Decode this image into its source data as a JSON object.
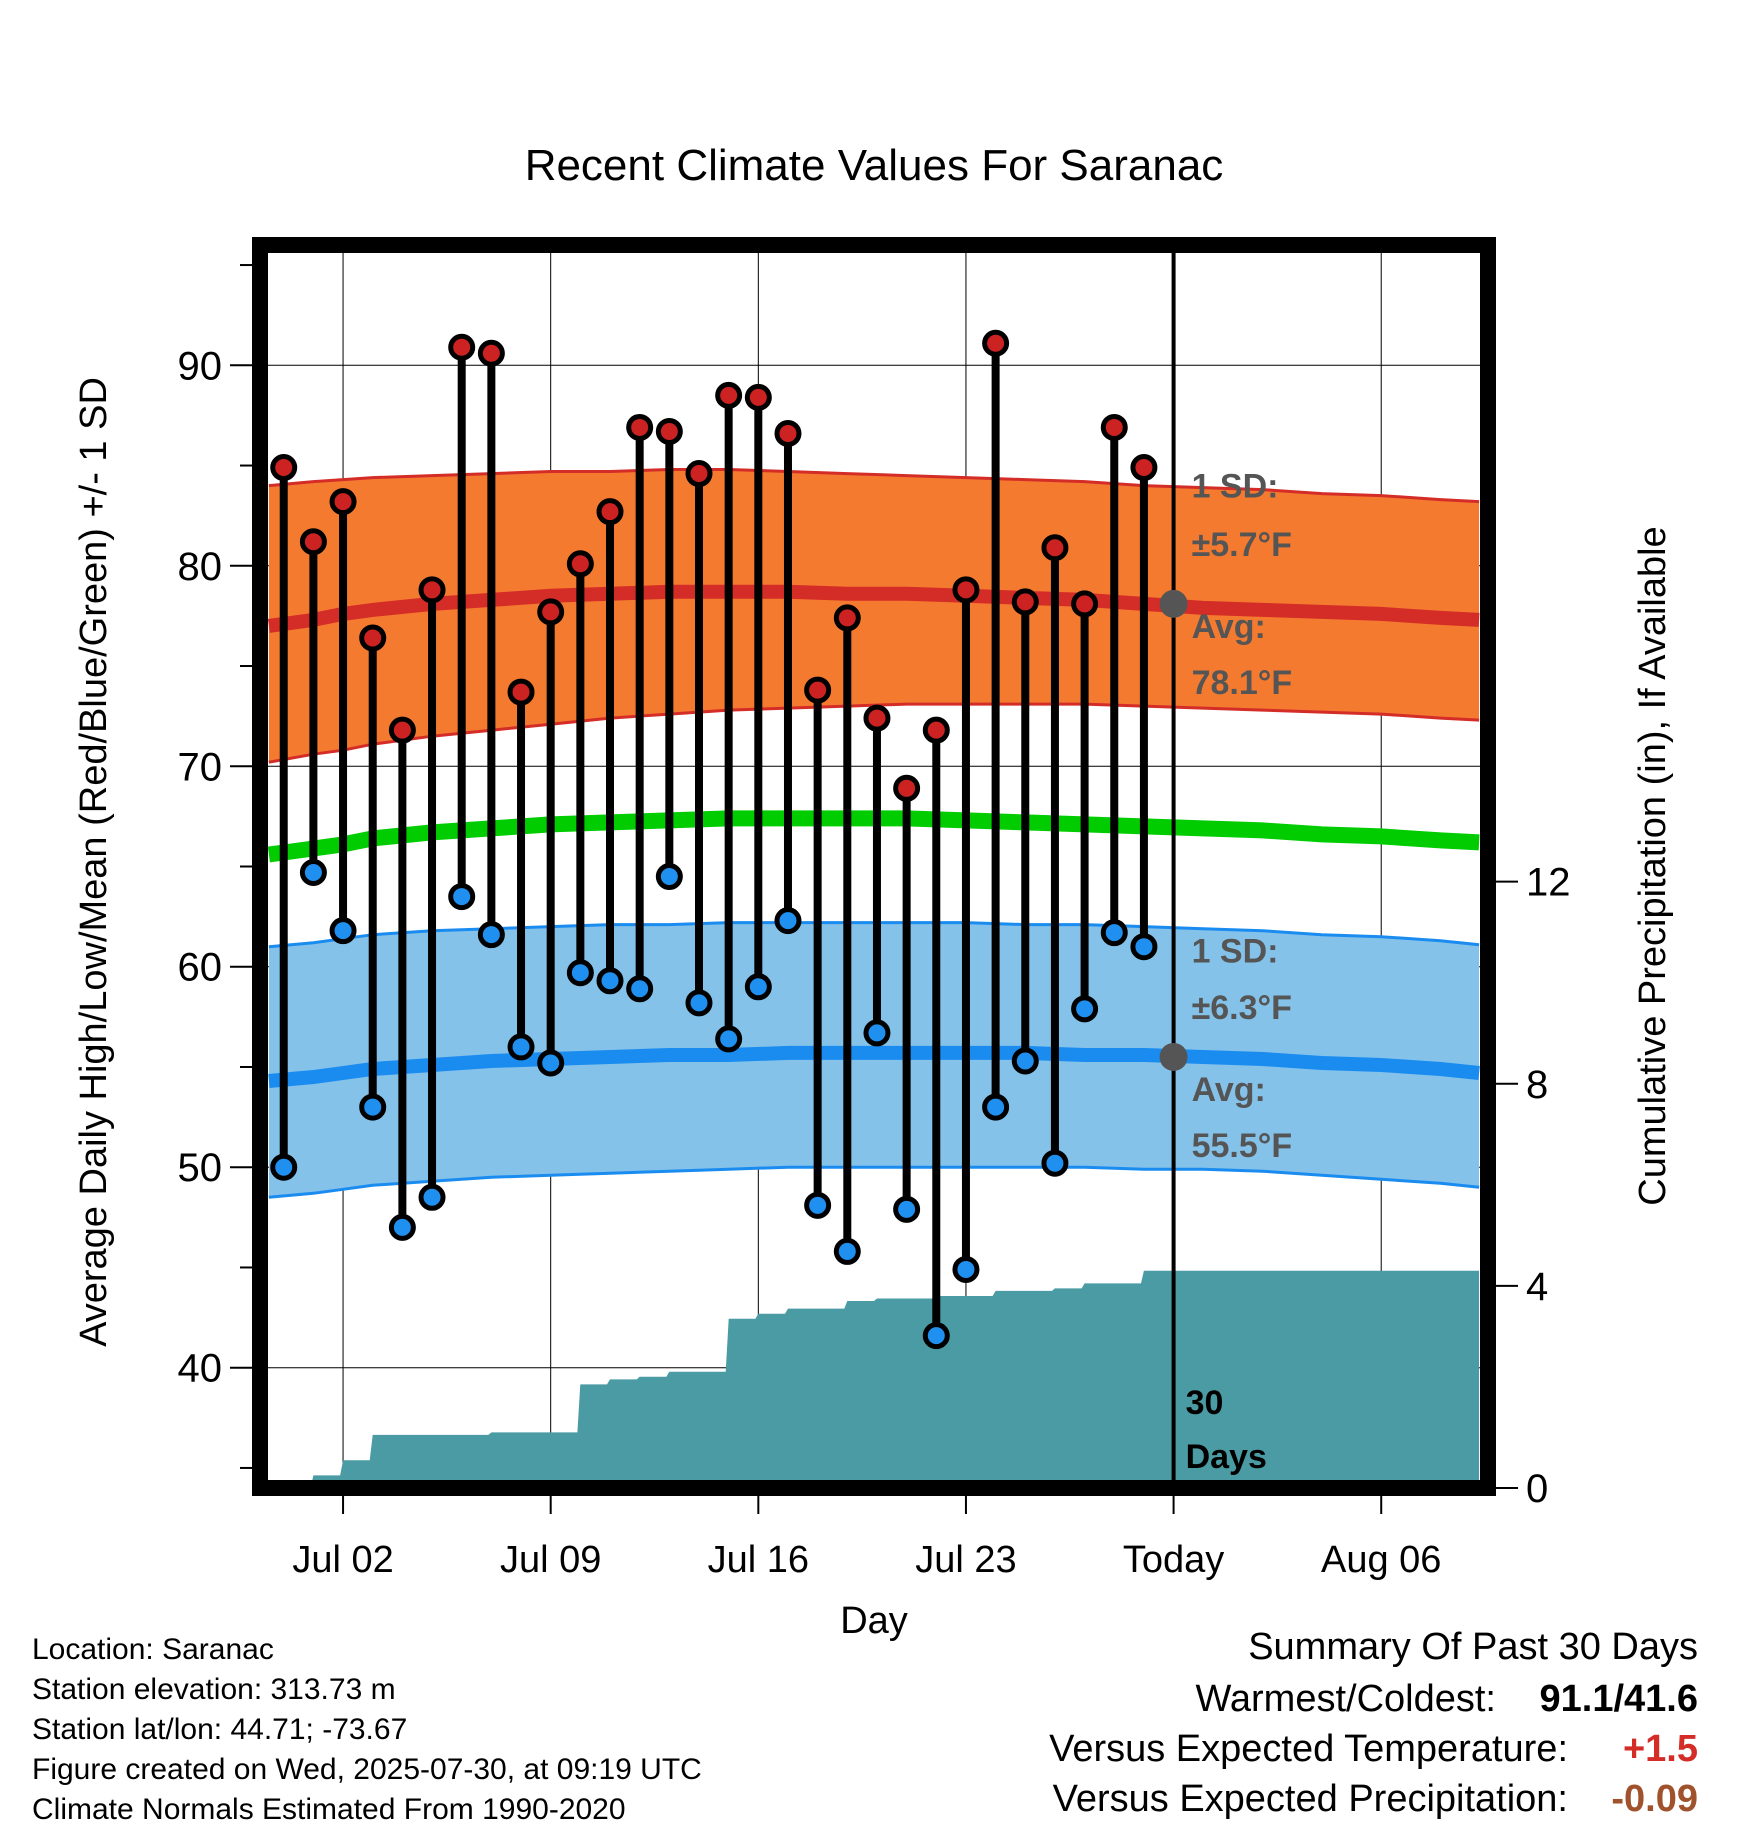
{
  "chart_data": {
    "type": "line",
    "title": "Recent Climate Values For Saranac",
    "xlabel": "Day",
    "ylabel": "Average Daily High/Low/Mean (Red/Blue/Green) +/- 1 SD",
    "y2label": "Cumulative Precipitation (in), If Available",
    "x_range_days_from_jul01": [
      -1.8,
      39.6
    ],
    "ylim": [
      34,
      96
    ],
    "y2lim": [
      0,
      24.6
    ],
    "grid": true,
    "x_ticks": [
      {
        "label": "Jul 02",
        "day": 1
      },
      {
        "label": "Jul 09",
        "day": 8
      },
      {
        "label": "Jul 16",
        "day": 15
      },
      {
        "label": "Jul 23",
        "day": 22
      },
      {
        "label": "Today",
        "day": 29
      },
      {
        "label": "Aug 06",
        "day": 36
      }
    ],
    "y_ticks": [
      40,
      50,
      60,
      70,
      80,
      90
    ],
    "y_minor_ticks": [
      35,
      45,
      55,
      65,
      75,
      85,
      95
    ],
    "y2_ticks": [
      0,
      4,
      8,
      12
    ],
    "colors": {
      "high_band": "#F47A30",
      "high_line": "#D42C27",
      "mean_line": "#00CC00",
      "low_band": "#84C2EA",
      "low_line": "#1A8CF0",
      "band_edge_high": "#D42C27",
      "band_edge_low": "#1A8CF0",
      "precip": "#4A9BA3",
      "high_marker": "#CC2222",
      "low_marker": "#2090F0",
      "positive": "#D42C27",
      "precip_deficit": "#A0522D"
    },
    "normal_days": [
      -1.5,
      0,
      1,
      2,
      4,
      6,
      8,
      10,
      12,
      14,
      16,
      18,
      20,
      22,
      24,
      26,
      28,
      30,
      32,
      34,
      36,
      38,
      39.3
    ],
    "normal_high": [
      77,
      77.3,
      77.6,
      77.8,
      78.1,
      78.3,
      78.5,
      78.6,
      78.7,
      78.7,
      78.7,
      78.6,
      78.6,
      78.5,
      78.4,
      78.3,
      78.1,
      77.9,
      77.8,
      77.7,
      77.6,
      77.4,
      77.3
    ],
    "high_sd_upper": [
      84,
      84.2,
      84.3,
      84.4,
      84.5,
      84.6,
      84.7,
      84.7,
      84.8,
      84.8,
      84.7,
      84.6,
      84.5,
      84.4,
      84.3,
      84.2,
      84.0,
      83.9,
      83.8,
      83.6,
      83.5,
      83.3,
      83.2
    ],
    "high_sd_lower": [
      70.2,
      70.6,
      70.8,
      71.1,
      71.5,
      71.8,
      72.1,
      72.4,
      72.6,
      72.8,
      72.9,
      73.0,
      73.1,
      73.1,
      73.1,
      73.1,
      73.0,
      72.9,
      72.8,
      72.7,
      72.6,
      72.4,
      72.3
    ],
    "normal_mean": [
      65.6,
      65.9,
      66.1,
      66.4,
      66.7,
      66.9,
      67.1,
      67.2,
      67.3,
      67.4,
      67.4,
      67.4,
      67.4,
      67.3,
      67.2,
      67.1,
      67.0,
      66.9,
      66.8,
      66.6,
      66.5,
      66.3,
      66.2
    ],
    "normal_low": [
      54.3,
      54.5,
      54.7,
      54.9,
      55.1,
      55.3,
      55.4,
      55.5,
      55.6,
      55.6,
      55.7,
      55.7,
      55.7,
      55.7,
      55.7,
      55.6,
      55.6,
      55.5,
      55.4,
      55.2,
      55.1,
      54.9,
      54.7
    ],
    "low_sd_upper": [
      61.0,
      61.2,
      61.4,
      61.6,
      61.8,
      61.9,
      62.0,
      62.1,
      62.1,
      62.2,
      62.2,
      62.2,
      62.2,
      62.2,
      62.1,
      62.1,
      62.0,
      61.9,
      61.8,
      61.6,
      61.5,
      61.3,
      61.1
    ],
    "low_sd_lower": [
      48.5,
      48.7,
      48.9,
      49.1,
      49.3,
      49.5,
      49.6,
      49.7,
      49.8,
      49.9,
      50.0,
      50.0,
      50.0,
      50.0,
      50.0,
      50.0,
      49.9,
      49.9,
      49.8,
      49.6,
      49.4,
      49.2,
      49.0
    ],
    "obs_days": [
      -1,
      0,
      1,
      2,
      3,
      4,
      5,
      6,
      7,
      8,
      9,
      10,
      11,
      12,
      13,
      14,
      15,
      16,
      17,
      18,
      19,
      20,
      21,
      22,
      23,
      24,
      25,
      26,
      27,
      28
    ],
    "observed_high": [
      84.9,
      81.2,
      83.2,
      76.4,
      71.8,
      78.8,
      90.9,
      90.6,
      73.7,
      77.7,
      80.1,
      82.7,
      86.9,
      86.7,
      84.6,
      88.5,
      88.4,
      86.6,
      73.8,
      77.4,
      72.4,
      68.9,
      71.8,
      78.8,
      91.1,
      78.2,
      80.9,
      78.1,
      86.9,
      84.9
    ],
    "observed_low": [
      50.0,
      64.7,
      61.8,
      53.0,
      47.0,
      48.5,
      63.5,
      61.6,
      56.0,
      55.2,
      59.7,
      59.3,
      58.9,
      64.5,
      58.2,
      56.4,
      59.0,
      62.3,
      48.1,
      45.8,
      56.7,
      47.9,
      41.6,
      44.9,
      53.0,
      55.3,
      50.2,
      57.9,
      61.7,
      61.0
    ],
    "precip_days": [
      -1.5,
      -0.1,
      0,
      0.9,
      1,
      1.9,
      2,
      5.9,
      6,
      7.9,
      8,
      8.9,
      9,
      9.9,
      10,
      10.9,
      11,
      11.9,
      12,
      13.9,
      14,
      14.9,
      15,
      15.9,
      16,
      17.9,
      18,
      18.9,
      19,
      20.9,
      21,
      22.9,
      23,
      24.9,
      25,
      25.9,
      26,
      27.9,
      28,
      39.3
    ],
    "precip_cumulative": [
      0,
      0,
      0.25,
      0.25,
      0.55,
      0.55,
      1.05,
      1.05,
      1.1,
      1.1,
      1.1,
      1.1,
      2.05,
      2.05,
      2.15,
      2.15,
      2.2,
      2.2,
      2.3,
      2.3,
      3.35,
      3.35,
      3.45,
      3.45,
      3.55,
      3.55,
      3.7,
      3.7,
      3.75,
      3.75,
      3.8,
      3.8,
      3.9,
      3.9,
      3.95,
      3.95,
      4.05,
      4.05,
      4.3,
      4.3
    ],
    "annotations": {
      "high_sd_label": "1 SD:",
      "high_sd_value": "±5.7°F",
      "high_avg_label": "Avg:",
      "high_avg_value": "78.1°F",
      "low_sd_label": "1 SD:",
      "low_sd_value": "±6.3°F",
      "low_avg_label": "Avg:",
      "low_avg_value": "55.5°F",
      "days_label_1": "30",
      "days_label_2": "Days",
      "today_avg_high": 78.1,
      "today_avg_low": 55.5
    }
  },
  "footer": {
    "location": "Location: Saranac",
    "elevation": "Station elevation: 313.73 m",
    "latlon": "Station lat/lon: 44.71; -73.67",
    "created": "Figure created on Wed, 2025-07-30, at 09:19 UTC",
    "normals": "Climate Normals Estimated From 1990-2020"
  },
  "summary": {
    "title": "Summary Of Past 30 Days",
    "warmest_coldest_label": "Warmest/Coldest:",
    "warmest_coldest_value": "91.1/41.6",
    "temp_label": "Versus Expected Temperature:",
    "temp_value": "+1.5",
    "precip_label": "Versus Expected Precipitation:",
    "precip_value": "-0.09"
  }
}
